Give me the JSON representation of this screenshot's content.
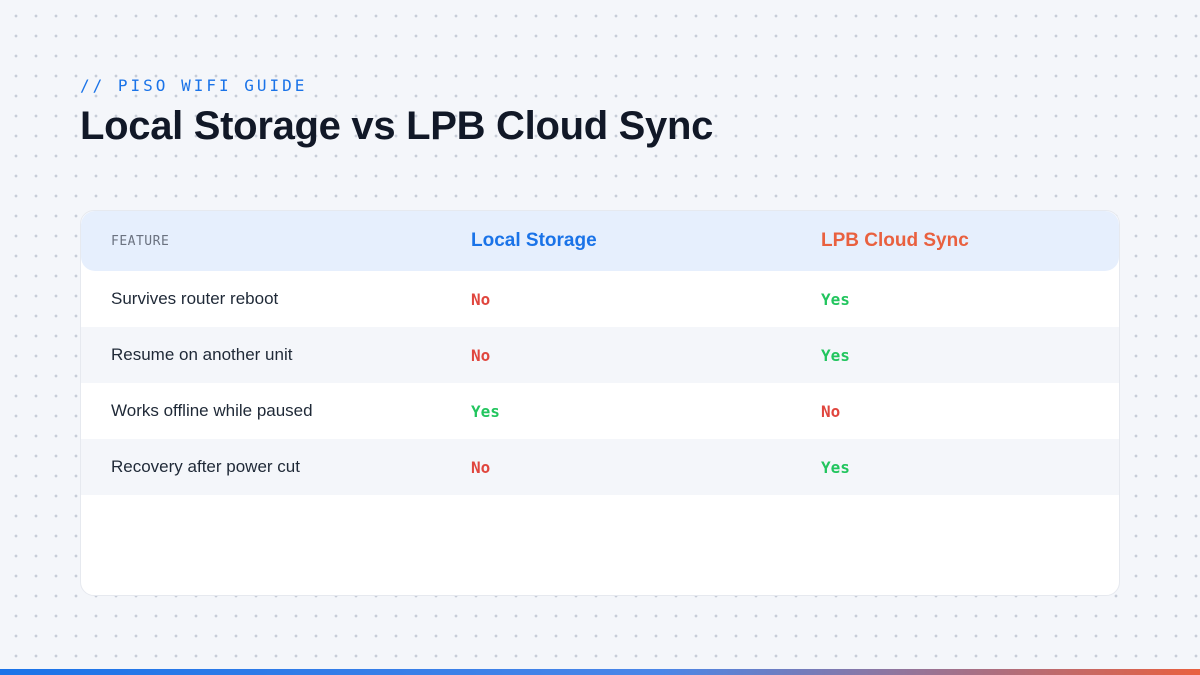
{
  "header": {
    "eyebrow": "// PISO WIFI GUIDE",
    "title": "Local Storage vs LPB Cloud Sync"
  },
  "table": {
    "columns": [
      "FEATURE",
      "Local Storage",
      "LPB Cloud Sync"
    ],
    "rows": [
      {
        "feature": "Survives router reboot",
        "local": "No",
        "cloud": "Yes"
      },
      {
        "feature": "Resume on another unit",
        "local": "No",
        "cloud": "Yes"
      },
      {
        "feature": "Works offline while paused",
        "local": "Yes",
        "cloud": "No"
      },
      {
        "feature": "Recovery after power cut",
        "local": "No",
        "cloud": "Yes"
      }
    ]
  },
  "colors": {
    "accent_blue": "#1a73e8",
    "accent_orange": "#e9603f",
    "yes_green": "#22c55e",
    "no_red": "#e0463e",
    "bottom_bar_gradient": [
      "#1a73e8",
      "#e9603f"
    ]
  }
}
